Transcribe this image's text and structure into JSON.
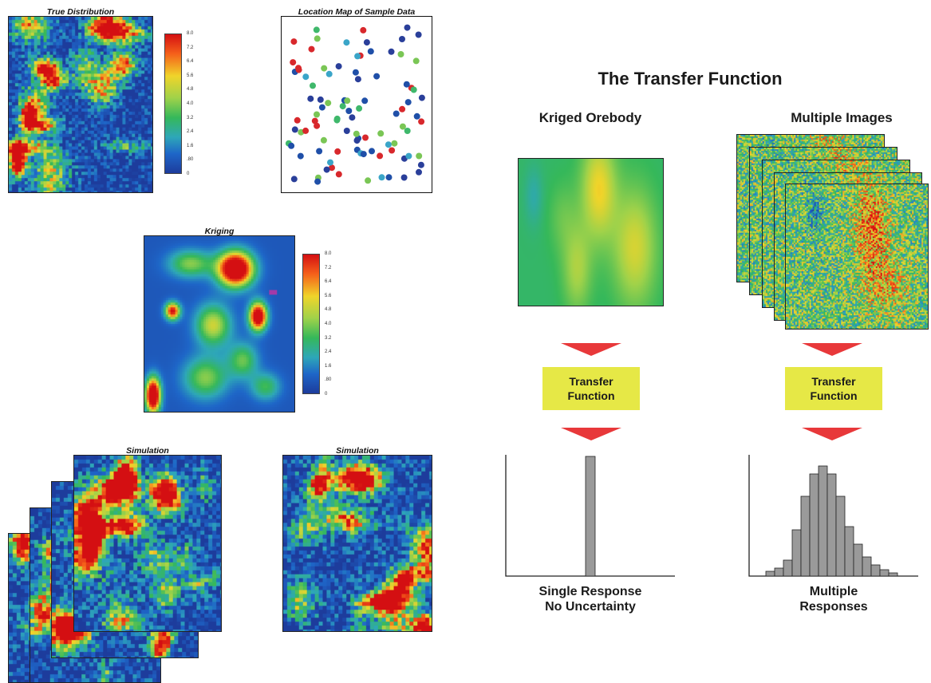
{
  "left": {
    "true_distribution": {
      "title": "True Distribution"
    },
    "location_map": {
      "title": "Location Map of Sample Data"
    },
    "kriging": {
      "title": "Kriging"
    },
    "simulation_stack": {
      "title": "Simulation"
    },
    "simulation_single": {
      "title": "Simulation"
    },
    "colorbar_ticks": [
      "8.0",
      "7.2",
      "6.4",
      "5.6",
      "4.8",
      "4.0",
      "3.2",
      "2.4",
      "1.6",
      ".80",
      "0"
    ]
  },
  "right": {
    "title": "The Transfer Function",
    "kriged": {
      "heading": "Kriged Orebody",
      "transfer_line1": "Transfer",
      "transfer_line2": "Function",
      "caption_line1": "Single Response",
      "caption_line2": "No Uncertainty"
    },
    "multiple": {
      "heading": "Multiple Images",
      "transfer_line1": "Transfer",
      "transfer_line2": "Function",
      "caption_line1": "Multiple",
      "caption_line2": "Responses"
    }
  },
  "colors": {
    "arrow": "#e8383a",
    "transfer_box": "#e6e846",
    "histogram_bar": "#9a9a9a"
  }
}
